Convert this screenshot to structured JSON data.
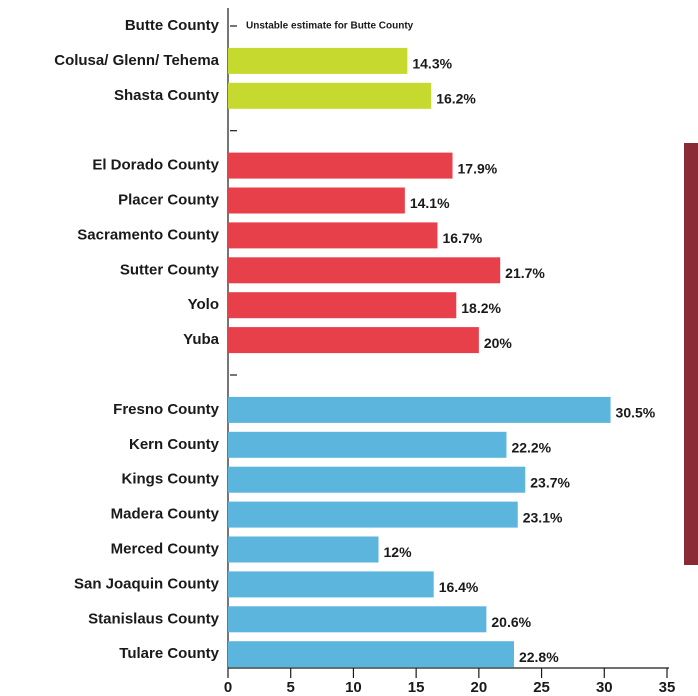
{
  "chart_data": {
    "type": "barh",
    "categories": [
      "Butte County",
      "Colusa/ Glenn/ Tehema",
      "Shasta County",
      null,
      "El Dorado County",
      "Placer County",
      "Sacramento County",
      "Sutter County",
      "Yolo",
      "Yuba",
      null,
      "Fresno County",
      "Kern County",
      "Kings County",
      "Madera County",
      "Merced County",
      "San Joaquin County",
      "Stanislaus County",
      "Tulare County"
    ],
    "values": [
      null,
      14.3,
      16.2,
      null,
      17.9,
      14.1,
      16.7,
      21.7,
      18.2,
      20,
      null,
      30.5,
      22.2,
      23.7,
      23.1,
      12,
      16.4,
      20.6,
      22.8
    ],
    "value_labels": [
      null,
      "14.3%",
      "16.2%",
      null,
      "17.9%",
      "14.1%",
      "16.7%",
      "21.7%",
      "18.2%",
      "20%",
      null,
      "30.5%",
      "22.2%",
      "23.7%",
      "23.1%",
      "12%",
      "16.4%",
      "20.6%",
      "22.8%"
    ],
    "colors": [
      null,
      "#c6d92f",
      "#c6d92f",
      null,
      "#e8404a",
      "#e8404a",
      "#e8404a",
      "#e8404a",
      "#e8404a",
      "#e8404a",
      null,
      "#5bb5dd",
      "#5bb5dd",
      "#5bb5dd",
      "#5bb5dd",
      "#5bb5dd",
      "#5bb5dd",
      "#5bb5dd",
      "#5bb5dd"
    ],
    "annotation": "Unstable estimate for Butte County",
    "xlim": [
      0,
      35
    ],
    "xticks": [
      0,
      5,
      10,
      15,
      20,
      25,
      30,
      35
    ]
  }
}
